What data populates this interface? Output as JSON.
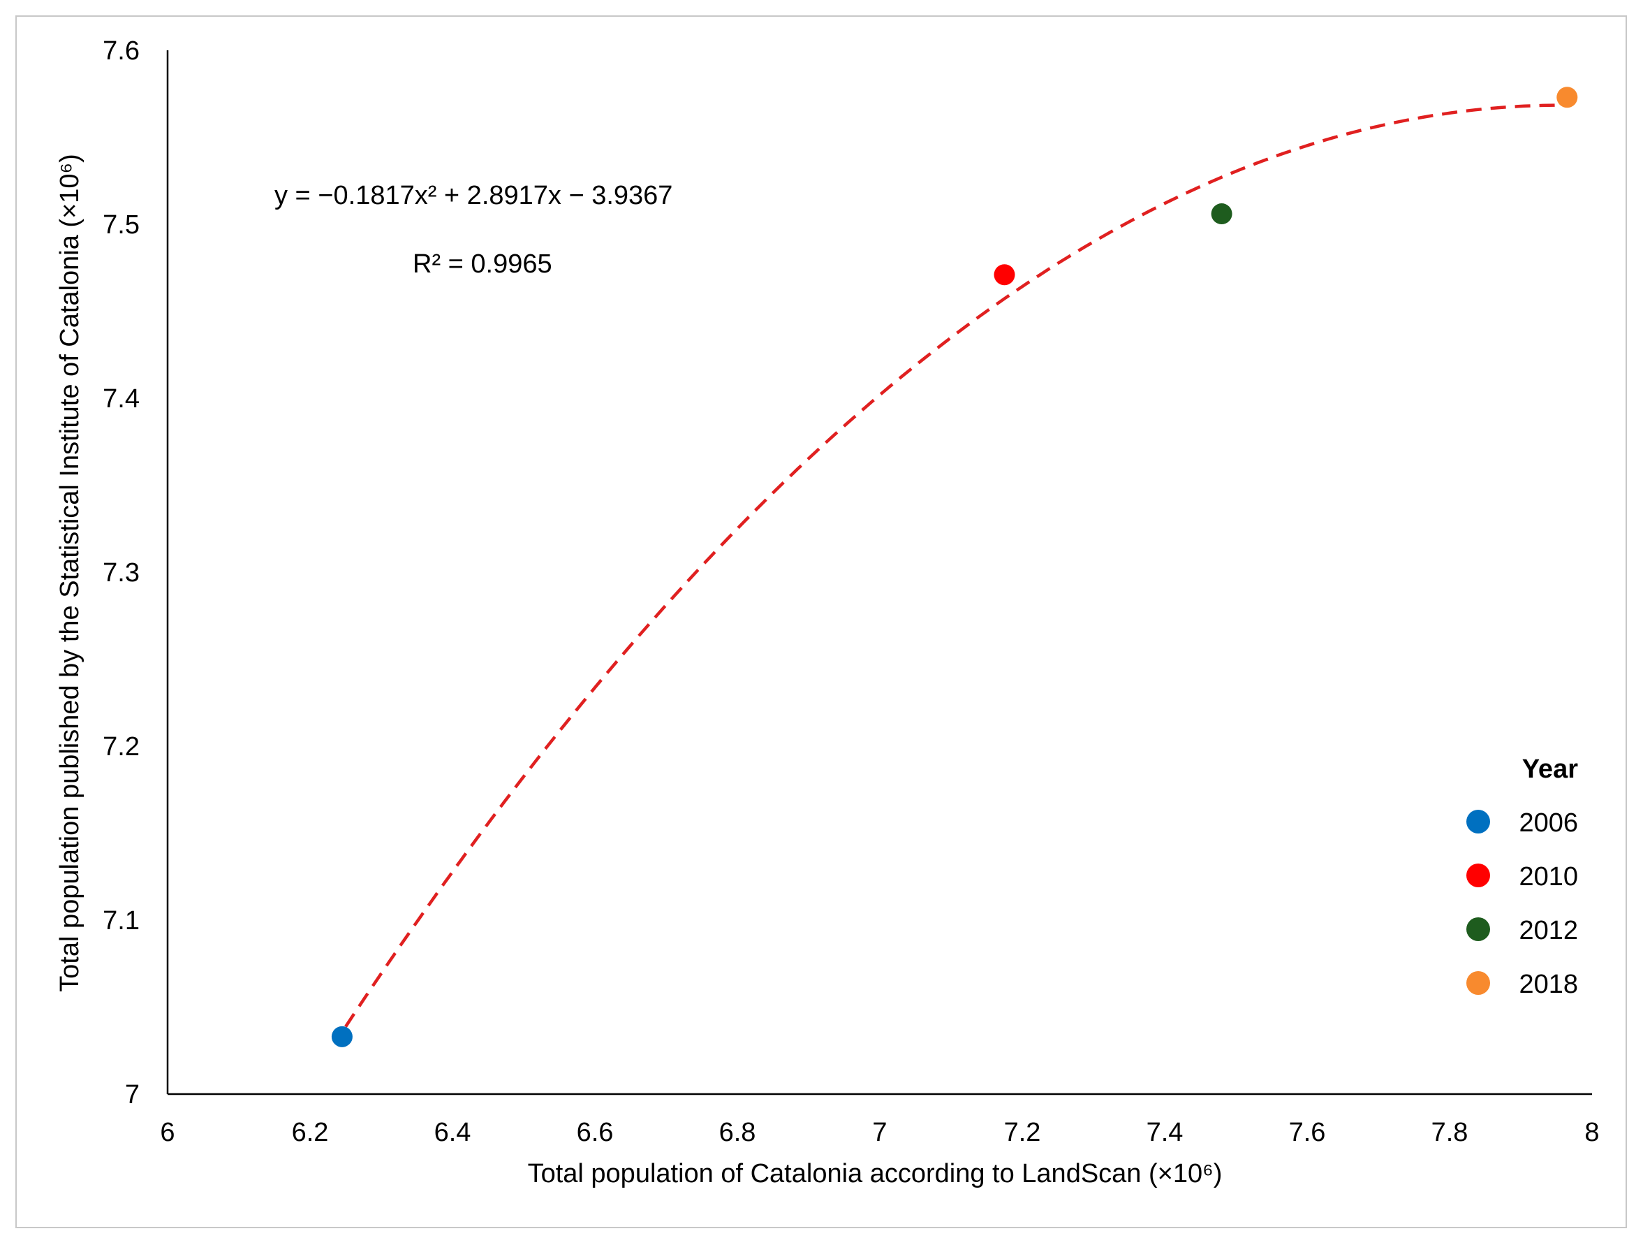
{
  "chart_data": {
    "type": "scatter",
    "xlabel": "Total population of Catalonia according to LandScan (×10⁶)",
    "ylabel": "Total population published by the Statistical Institute of Catalonia (×10⁶)",
    "xlim": [
      6,
      8
    ],
    "ylim": [
      7,
      7.6
    ],
    "x_ticks": [
      "6",
      "6.2",
      "6.4",
      "6.6",
      "6.8",
      "7",
      "7.2",
      "7.4",
      "7.6",
      "7.8",
      "8"
    ],
    "y_ticks": [
      "7",
      "7.1",
      "7.2",
      "7.3",
      "7.4",
      "7.5",
      "7.6"
    ],
    "grid": false,
    "legend_title": "Year",
    "legend_position": "bottom-right",
    "series": [
      {
        "name": "2006",
        "color": "#0070c0",
        "x": [
          6.245
        ],
        "y": [
          7.033
        ]
      },
      {
        "name": "2010",
        "color": "#ff0000",
        "x": [
          7.175
        ],
        "y": [
          7.471
        ]
      },
      {
        "name": "2012",
        "color": "#1e5c1e",
        "x": [
          7.48
        ],
        "y": [
          7.506
        ]
      },
      {
        "name": "2018",
        "color": "#f88a2e",
        "x": [
          7.965
        ],
        "y": [
          7.573
        ]
      }
    ],
    "trendline": {
      "type": "polynomial",
      "coefficients": [
        -0.1817,
        2.8917,
        -3.9367
      ],
      "x_range": [
        6.25,
        7.965
      ],
      "color": "#e02020",
      "style": "dashed"
    },
    "annotations": [
      {
        "text": "y = −0.1817x² + 2.8917x − 3.9367"
      },
      {
        "text": "R² = 0.9965"
      }
    ]
  }
}
